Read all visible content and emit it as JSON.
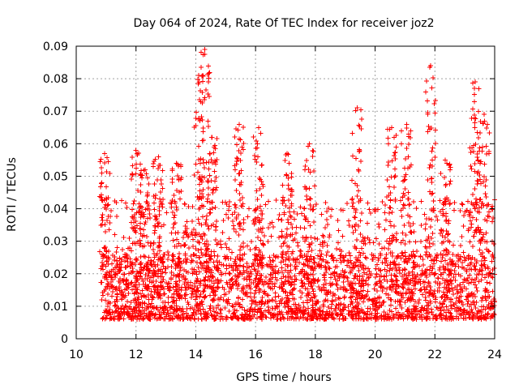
{
  "chart_data": {
    "type": "scatter",
    "title": "Day 064 of 2024, Rate Of TEC Index for receiver joz2",
    "xlabel": "GPS time / hours",
    "ylabel": "ROTI / TECUs",
    "xlim": [
      10,
      24
    ],
    "ylim": [
      0,
      0.09
    ],
    "xticks": [
      10,
      12,
      14,
      16,
      18,
      20,
      22,
      24
    ],
    "xtick_labels": [
      "10",
      "12",
      "14",
      "16",
      "18",
      "20",
      "22",
      "24"
    ],
    "yticks": [
      0,
      0.01,
      0.02,
      0.03,
      0.04,
      0.05,
      0.06,
      0.07,
      0.08,
      0.09
    ],
    "ytick_labels": [
      "0",
      "0.01",
      "0.02",
      "0.03",
      "0.04",
      "0.05",
      "0.06",
      "0.07",
      "0.08",
      "0.09"
    ],
    "grid": true,
    "marker": "+",
    "color": "#ff0000",
    "series": [
      {
        "name": "ROTI",
        "x_start": 10.85,
        "x_end": 24.0,
        "bursts": [
          {
            "x": 10.95,
            "y": 0.057
          },
          {
            "x": 12.0,
            "y": 0.058
          },
          {
            "x": 12.3,
            "y": 0.052
          },
          {
            "x": 12.75,
            "y": 0.056
          },
          {
            "x": 13.35,
            "y": 0.054
          },
          {
            "x": 14.1,
            "y": 0.081
          },
          {
            "x": 14.3,
            "y": 0.089
          },
          {
            "x": 14.55,
            "y": 0.062
          },
          {
            "x": 15.45,
            "y": 0.066
          },
          {
            "x": 16.1,
            "y": 0.065
          },
          {
            "x": 17.05,
            "y": 0.057
          },
          {
            "x": 17.8,
            "y": 0.06
          },
          {
            "x": 19.4,
            "y": 0.071
          },
          {
            "x": 20.55,
            "y": 0.065
          },
          {
            "x": 21.05,
            "y": 0.066
          },
          {
            "x": 21.85,
            "y": 0.084
          },
          {
            "x": 22.35,
            "y": 0.055
          },
          {
            "x": 23.35,
            "y": 0.079
          },
          {
            "x": 23.65,
            "y": 0.069
          }
        ]
      }
    ]
  }
}
